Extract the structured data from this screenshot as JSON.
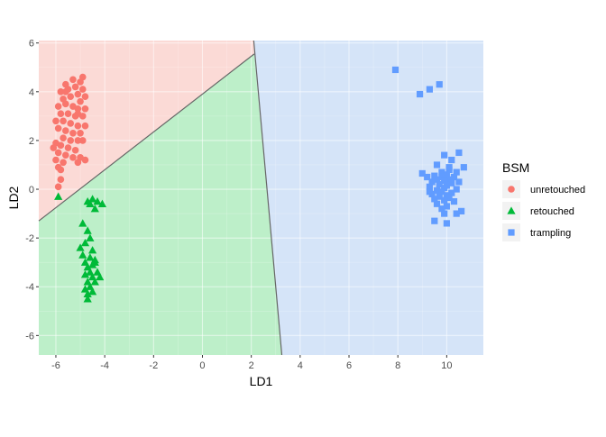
{
  "chart_data": {
    "type": "scatter",
    "title": "",
    "xlabel": "LD1",
    "ylabel": "LD2",
    "xlim": [
      -6.7,
      11.5
    ],
    "ylim": [
      -6.8,
      6.1
    ],
    "x_ticks": [
      -6,
      -4,
      -2,
      0,
      2,
      4,
      6,
      8,
      10
    ],
    "y_ticks": [
      -6,
      -4,
      -2,
      0,
      2,
      4,
      6
    ],
    "grid": true,
    "legend": {
      "title": "BSM",
      "position": "right"
    },
    "colors": {
      "unretouched": "#F8766D",
      "retouched": "#00BA38",
      "trampling": "#619CFF",
      "region_unretouched": "#FBDAD6",
      "region_retouched": "#BDEFC9",
      "region_trampling": "#D5E4F8",
      "boundary": "#666666"
    },
    "regions": [
      {
        "class": "unretouched",
        "polygon": [
          [
            -6.7,
            6.1
          ],
          [
            2.1,
            6.1
          ],
          [
            2.12,
            5.55
          ],
          [
            -6.7,
            -1.3
          ]
        ]
      },
      {
        "class": "retouched",
        "polygon": [
          [
            -6.7,
            -1.3
          ],
          [
            2.12,
            5.55
          ],
          [
            3.25,
            -6.8
          ],
          [
            -6.7,
            -6.8
          ]
        ]
      },
      {
        "class": "trampling",
        "polygon": [
          [
            2.1,
            6.1
          ],
          [
            11.5,
            6.1
          ],
          [
            11.5,
            -6.8
          ],
          [
            3.25,
            -6.8
          ],
          [
            2.12,
            5.55
          ]
        ]
      }
    ],
    "boundaries": [
      [
        [
          -6.7,
          -1.3
        ],
        [
          2.12,
          5.55
        ]
      ],
      [
        [
          2.1,
          6.1
        ],
        [
          3.25,
          -6.8
        ]
      ]
    ],
    "series": [
      {
        "name": "unretouched",
        "marker": "circle",
        "points": [
          [
            -4.9,
            4.6
          ],
          [
            -5.0,
            4.4
          ],
          [
            -5.3,
            4.5
          ],
          [
            -5.6,
            4.3
          ],
          [
            -5.8,
            4.0
          ],
          [
            -5.5,
            4.1
          ],
          [
            -5.2,
            4.2
          ],
          [
            -4.9,
            4.1
          ],
          [
            -5.1,
            3.9
          ],
          [
            -5.7,
            3.7
          ],
          [
            -5.4,
            3.8
          ],
          [
            -5.0,
            3.6
          ],
          [
            -4.8,
            3.8
          ],
          [
            -5.9,
            3.4
          ],
          [
            -5.6,
            3.5
          ],
          [
            -5.3,
            3.4
          ],
          [
            -5.1,
            3.3
          ],
          [
            -4.8,
            3.3
          ],
          [
            -5.8,
            3.1
          ],
          [
            -5.5,
            3.1
          ],
          [
            -5.2,
            3.0
          ],
          [
            -4.9,
            3.0
          ],
          [
            -6.0,
            2.8
          ],
          [
            -5.7,
            2.8
          ],
          [
            -5.4,
            2.7
          ],
          [
            -5.1,
            2.6
          ],
          [
            -4.8,
            2.6
          ],
          [
            -5.9,
            2.5
          ],
          [
            -5.6,
            2.4
          ],
          [
            -5.3,
            2.3
          ],
          [
            -5.0,
            2.3
          ],
          [
            -5.7,
            2.1
          ],
          [
            -5.4,
            2.0
          ],
          [
            -5.1,
            2.0
          ],
          [
            -6.0,
            1.9
          ],
          [
            -5.8,
            1.8
          ],
          [
            -5.5,
            1.7
          ],
          [
            -5.2,
            1.6
          ],
          [
            -6.1,
            1.7
          ],
          [
            -5.9,
            1.5
          ],
          [
            -5.6,
            1.4
          ],
          [
            -5.3,
            1.3
          ],
          [
            -5.0,
            1.3
          ],
          [
            -6.0,
            1.2
          ],
          [
            -5.7,
            1.1
          ],
          [
            -5.1,
            1.1
          ],
          [
            -4.8,
            1.2
          ],
          [
            -5.9,
            0.9
          ],
          [
            -5.8,
            0.8
          ],
          [
            -5.8,
            0.4
          ],
          [
            -5.9,
            0.1
          ],
          [
            -5.6,
            4.0
          ],
          [
            -5.1,
            3.1
          ],
          [
            -4.9,
            2.0
          ]
        ]
      },
      {
        "name": "retouched",
        "marker": "triangle",
        "points": [
          [
            -5.9,
            -0.3
          ],
          [
            -4.5,
            -0.4
          ],
          [
            -4.7,
            -0.5
          ],
          [
            -4.3,
            -0.5
          ],
          [
            -4.6,
            -0.6
          ],
          [
            -4.1,
            -0.6
          ],
          [
            -4.4,
            -0.8
          ],
          [
            -4.9,
            -1.4
          ],
          [
            -4.7,
            -1.7
          ],
          [
            -4.6,
            -2.0
          ],
          [
            -4.8,
            -2.2
          ],
          [
            -5.0,
            -2.4
          ],
          [
            -4.5,
            -2.5
          ],
          [
            -4.9,
            -2.7
          ],
          [
            -4.6,
            -2.8
          ],
          [
            -4.4,
            -2.9
          ],
          [
            -4.8,
            -3.0
          ],
          [
            -4.5,
            -3.1
          ],
          [
            -4.7,
            -3.2
          ],
          [
            -4.6,
            -3.4
          ],
          [
            -4.3,
            -3.4
          ],
          [
            -4.8,
            -3.5
          ],
          [
            -4.5,
            -3.6
          ],
          [
            -4.2,
            -3.6
          ],
          [
            -4.7,
            -3.8
          ],
          [
            -4.4,
            -3.8
          ],
          [
            -4.6,
            -4.0
          ],
          [
            -4.8,
            -4.1
          ],
          [
            -4.5,
            -4.2
          ],
          [
            -4.7,
            -4.3
          ],
          [
            -4.7,
            -4.5
          ],
          [
            -4.4,
            -3.0
          ]
        ]
      },
      {
        "name": "trampling",
        "marker": "square",
        "points": [
          [
            7.9,
            4.9
          ],
          [
            9.3,
            4.1
          ],
          [
            9.7,
            4.3
          ],
          [
            8.9,
            3.9
          ],
          [
            10.5,
            1.5
          ],
          [
            9.9,
            1.4
          ],
          [
            10.2,
            1.2
          ],
          [
            10.7,
            0.9
          ],
          [
            9.6,
            1.0
          ],
          [
            10.1,
            0.8
          ],
          [
            10.4,
            0.7
          ],
          [
            9.8,
            0.7
          ],
          [
            9.0,
            0.65
          ],
          [
            10.0,
            0.6
          ],
          [
            9.5,
            0.55
          ],
          [
            10.3,
            0.5
          ],
          [
            9.8,
            0.5
          ],
          [
            9.2,
            0.5
          ],
          [
            10.1,
            0.4
          ],
          [
            9.6,
            0.4
          ],
          [
            9.9,
            0.35
          ],
          [
            10.5,
            0.3
          ],
          [
            9.4,
            0.3
          ],
          [
            10.2,
            0.25
          ],
          [
            9.7,
            0.2
          ],
          [
            10.0,
            0.15
          ],
          [
            9.3,
            0.1
          ],
          [
            9.9,
            0.05
          ],
          [
            10.4,
            0.0
          ],
          [
            9.6,
            -0.05
          ],
          [
            9.8,
            -0.1
          ],
          [
            10.2,
            -0.15
          ],
          [
            9.4,
            -0.2
          ],
          [
            10.0,
            -0.25
          ],
          [
            9.7,
            -0.3
          ],
          [
            10.1,
            -0.35
          ],
          [
            9.5,
            -0.4
          ],
          [
            9.9,
            -0.45
          ],
          [
            10.3,
            -0.5
          ],
          [
            9.6,
            -0.6
          ],
          [
            10.0,
            -0.7
          ],
          [
            9.8,
            -0.8
          ],
          [
            10.6,
            -0.9
          ],
          [
            9.9,
            -1.0
          ],
          [
            10.4,
            -1.0
          ],
          [
            9.5,
            -1.3
          ],
          [
            10.0,
            -1.4
          ],
          [
            9.3,
            -0.1
          ],
          [
            10.1,
            0.9
          ]
        ]
      }
    ]
  }
}
